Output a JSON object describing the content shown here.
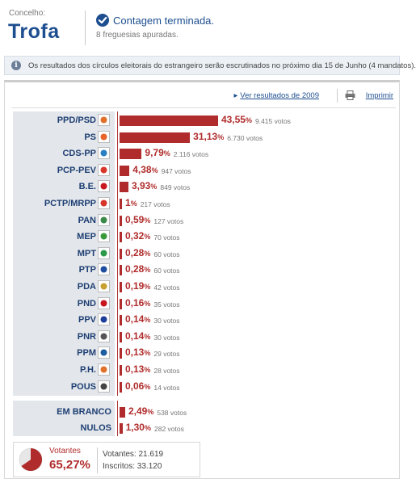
{
  "header": {
    "concelho_label": "Concelho:",
    "concelho_name": "Trofa",
    "status_title": "Contagem terminada.",
    "status_sub": "8 freguesias apuradas."
  },
  "info": {
    "text": "Os resultados dos círculos eleitorais do estrangeiro serão escrutinados no próximo dia 15 de Junho (4 mandatos)."
  },
  "links": {
    "previous": "Ver resultados de 2009",
    "print": "Imprimir"
  },
  "chart_data": {
    "type": "bar",
    "orientation": "horizontal",
    "categories": [
      "PPD/PSD",
      "PS",
      "CDS-PP",
      "PCP-PEV",
      "B.E.",
      "PCTP/MRPP",
      "PAN",
      "MEP",
      "MPT",
      "PTP",
      "PDA",
      "PND",
      "PPV",
      "PNR",
      "PPM",
      "P.H.",
      "POUS"
    ],
    "values": [
      43.55,
      31.13,
      9.79,
      4.38,
      3.93,
      1,
      0.59,
      0.32,
      0.28,
      0.28,
      0.19,
      0.16,
      0.14,
      0.14,
      0.13,
      0.13,
      0.06
    ],
    "pct_labels": [
      "43,55",
      "31,13",
      "9,79",
      "4,38",
      "3,93",
      "1",
      "0,59",
      "0,32",
      "0,28",
      "0,28",
      "0,19",
      "0,16",
      "0,14",
      "0,14",
      "0,13",
      "0,13",
      "0,06"
    ],
    "vote_labels": [
      "9.415 votos",
      "6.730 votos",
      "2.116 votos",
      "947 votos",
      "849 votos",
      "217 votos",
      "127 votos",
      "70 votos",
      "60 votos",
      "60 votos",
      "42 votos",
      "35 votos",
      "30 votos",
      "30 votos",
      "29 votos",
      "28 votos",
      "14 votos"
    ],
    "logos": [
      "psd-logo-icon",
      "ps-logo-icon",
      "cds-logo-icon",
      "cdu-logo-icon",
      "be-star-icon",
      "mrpp-logo-icon",
      "pan-logo-icon",
      "mep-logo-icon",
      "mpt-clover-icon",
      "ptp-logo-icon",
      "pda-logo-icon",
      "pnd-heart-icon",
      "ppv-logo-icon",
      "pnr-flame-icon",
      "ppm-logo-icon",
      "ph-logo-icon",
      "pous-logo-icon"
    ],
    "logo_colors": [
      "#e0702a",
      "#e8632a",
      "#2a7fc2",
      "#d9352b",
      "#c8161d",
      "#d8352a",
      "#3a8a4a",
      "#3a9a3a",
      "#2a9a4a",
      "#1d4ea0",
      "#c8a030",
      "#c8161d",
      "#1d3e9a",
      "#555555",
      "#1d5ea0",
      "#e0702a",
      "#444444"
    ],
    "bar_color": "#b02c2c",
    "xlim": [
      0,
      100
    ]
  },
  "blanks": {
    "categories": [
      "EM BRANCO",
      "NULOS"
    ],
    "values": [
      2.49,
      1.3
    ],
    "pct_labels": [
      "2,49",
      "1,30"
    ],
    "vote_labels": [
      "538 votos",
      "282 votos"
    ]
  },
  "participation": {
    "label": "Votantes",
    "pct": "65,27%",
    "pct_value": 65.27,
    "votantes": "Votantes: 21.619",
    "inscritos": "Inscritos: 33.120"
  },
  "colors": {
    "accent_blue": "#1d4e8f",
    "bar_red": "#b02c2c"
  }
}
